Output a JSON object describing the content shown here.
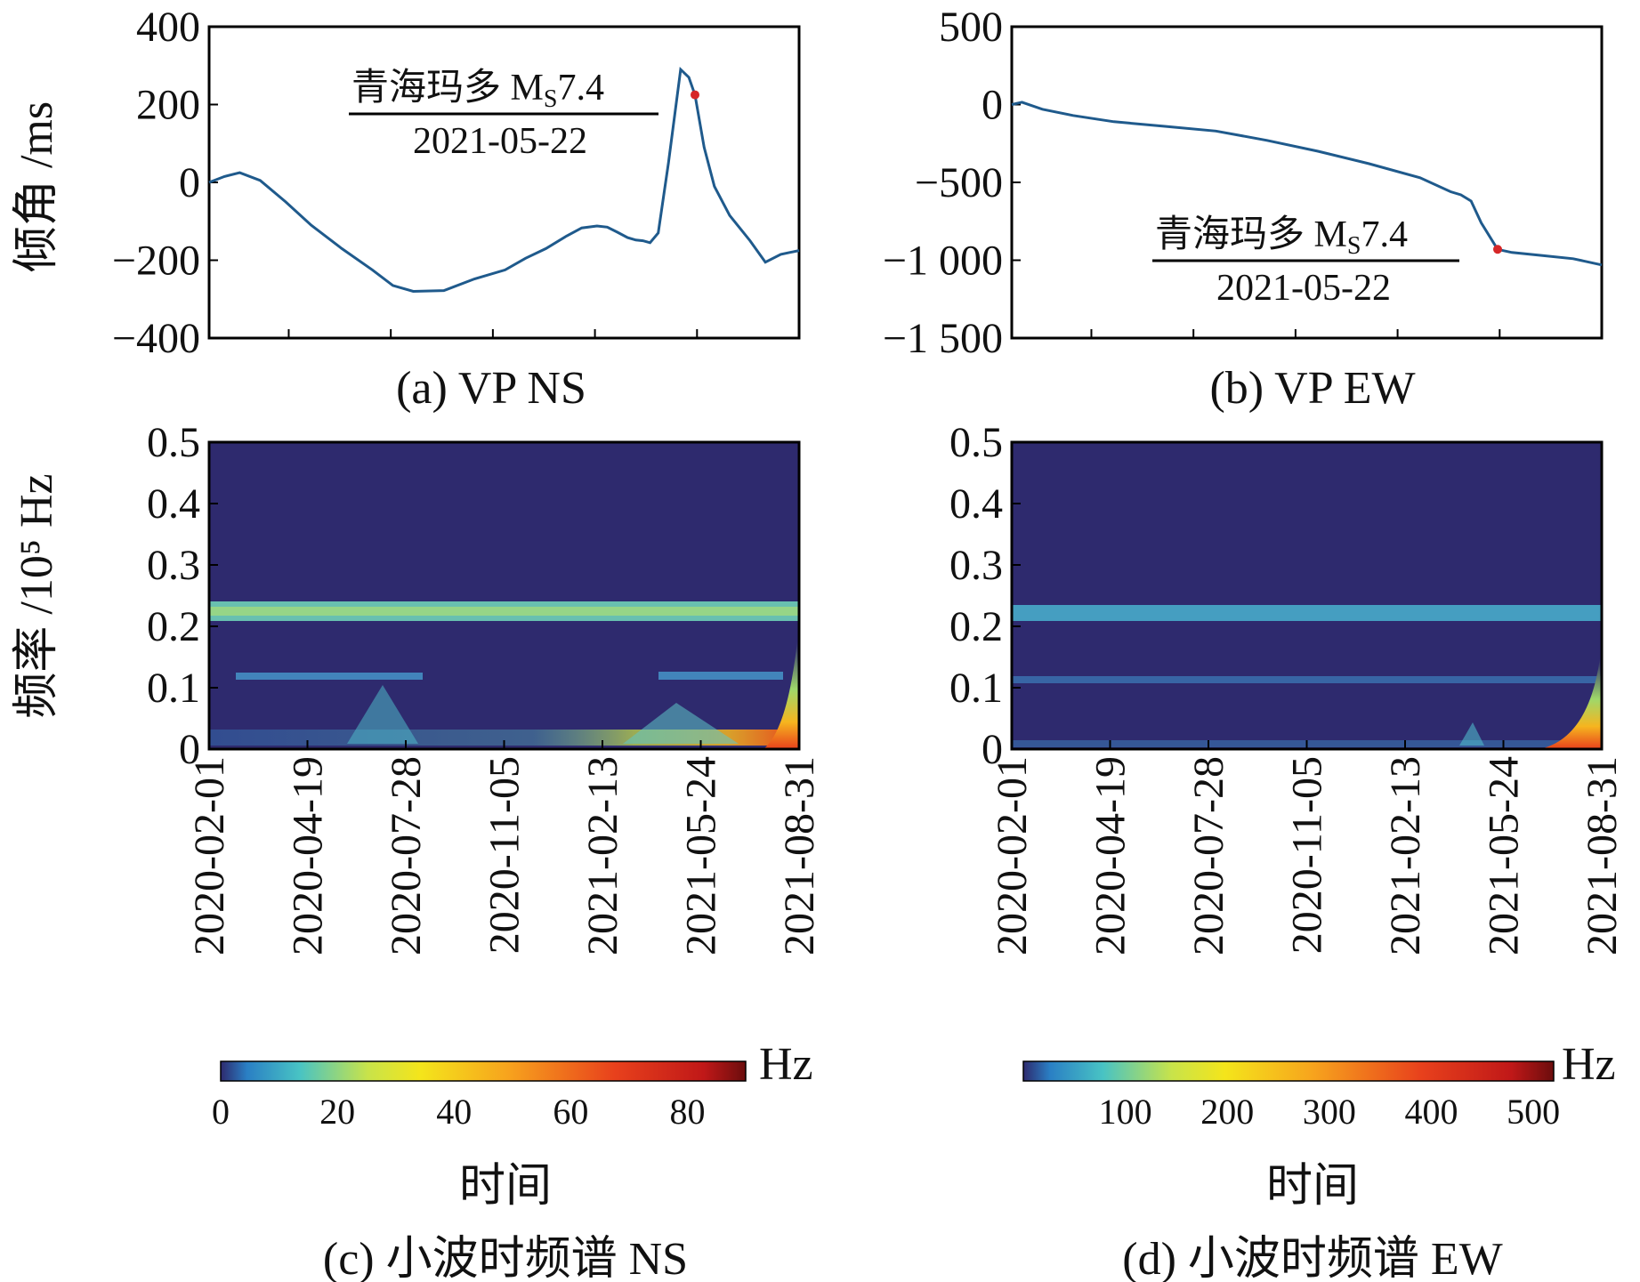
{
  "colors": {
    "line": "#1f5a8c",
    "marker": "#d62728",
    "spectrum_bg": "#2e2a6e",
    "axis": "#000000"
  },
  "chart_data": [
    {
      "id": "a",
      "type": "line",
      "caption": "(a) VP NS",
      "ylabel": "倾角 /ms",
      "ylim": [
        -400,
        400
      ],
      "yticks": [
        400,
        200,
        0,
        -200,
        -400
      ],
      "ytick_labels": [
        "400",
        "200",
        "0",
        "−200",
        "−400"
      ],
      "xlim": [
        0,
        578
      ],
      "annotation": {
        "title": "青海玛多 M",
        "sub": "S",
        "mag": "7.4",
        "date": "2021-05-22"
      },
      "event_day": 476,
      "series": [
        {
          "name": "VP NS",
          "x": [
            0,
            15,
            30,
            50,
            75,
            100,
            130,
            160,
            180,
            200,
            230,
            260,
            290,
            310,
            330,
            350,
            365,
            380,
            390,
            400,
            410,
            418,
            425,
            432,
            440,
            450,
            462,
            470,
            476,
            485,
            495,
            510,
            530,
            545,
            560,
            578
          ],
          "y": [
            0,
            15,
            25,
            5,
            -50,
            -110,
            -170,
            -225,
            -265,
            -280,
            -278,
            -248,
            -225,
            -195,
            -170,
            -138,
            -117,
            -112,
            -115,
            -128,
            -142,
            -148,
            -150,
            -155,
            -130,
            50,
            290,
            270,
            225,
            90,
            -10,
            -85,
            -150,
            -205,
            -185,
            -175
          ]
        }
      ]
    },
    {
      "id": "b",
      "type": "line",
      "caption": "(b) VP EW",
      "ylim": [
        -1500,
        500
      ],
      "yticks": [
        500,
        0,
        -500,
        -1000,
        -1500
      ],
      "ytick_labels": [
        "500",
        "0",
        "−500",
        "−1 000",
        "−1 500"
      ],
      "xlim": [
        0,
        578
      ],
      "annotation": {
        "title": "青海玛多 M",
        "sub": "S",
        "mag": "7.4",
        "date": "2021-05-22"
      },
      "event_day": 476,
      "series": [
        {
          "name": "VP EW",
          "x": [
            0,
            10,
            30,
            60,
            100,
            150,
            200,
            250,
            300,
            350,
            400,
            430,
            440,
            450,
            460,
            476,
            490,
            520,
            550,
            578
          ],
          "y": [
            0,
            15,
            -30,
            -70,
            -110,
            -140,
            -170,
            -230,
            -300,
            -380,
            -470,
            -560,
            -580,
            -620,
            -760,
            -930,
            -950,
            -970,
            -990,
            -1030
          ]
        }
      ]
    },
    {
      "id": "c",
      "type": "heatmap",
      "caption": "(c) 小波时频谱 NS",
      "ylabel": "频率 /10⁵ Hz",
      "xlabel": "时间",
      "ylim": [
        0,
        0.5
      ],
      "yticks": [
        0.5,
        0.4,
        0.3,
        0.2,
        0.1,
        0
      ],
      "ytick_labels": [
        "0.5",
        "0.4",
        "0.3",
        "0.2",
        "0.1",
        "0"
      ],
      "x_dates": [
        "2020-02-01",
        "2020-04-19",
        "2020-07-28",
        "2020-11-05",
        "2021-02-13",
        "2021-05-24",
        "2021-08-31"
      ],
      "colorbar": {
        "unit": "Hz",
        "ticks": [
          0,
          20,
          40,
          60,
          80
        ],
        "tick_labels": [
          "0",
          "20",
          "40",
          "60",
          "80"
        ],
        "range": [
          0,
          90
        ]
      },
      "bands": [
        {
          "freq": 0.225,
          "strength": 0.55,
          "note": "strong periodic band"
        },
        {
          "freq": 0.115,
          "strength": 0.35,
          "note": "intermittent band"
        },
        {
          "freq": 0.02,
          "strength": 0.3,
          "note": "low-frequency energy"
        }
      ]
    },
    {
      "id": "d",
      "type": "heatmap",
      "caption": "(d) 小波时频谱 EW",
      "xlabel": "时间",
      "ylim": [
        0,
        0.5
      ],
      "yticks": [
        0.5,
        0.4,
        0.3,
        0.2,
        0.1,
        0
      ],
      "ytick_labels": [
        "0.5",
        "0.4",
        "0.3",
        "0.2",
        "0.1",
        "0"
      ],
      "x_dates": [
        "2020-02-01",
        "2020-04-19",
        "2020-07-28",
        "2020-11-05",
        "2021-02-13",
        "2021-05-24",
        "2021-08-31"
      ],
      "colorbar": {
        "unit": "Hz",
        "ticks": [
          100,
          200,
          300,
          400,
          500
        ],
        "tick_labels": [
          "100",
          "200",
          "300",
          "400",
          "500"
        ],
        "range": [
          0,
          520
        ]
      },
      "bands": [
        {
          "freq": 0.225,
          "strength": 0.45,
          "note": "periodic band"
        },
        {
          "freq": 0.115,
          "strength": 0.25,
          "note": "weak band"
        }
      ]
    }
  ]
}
